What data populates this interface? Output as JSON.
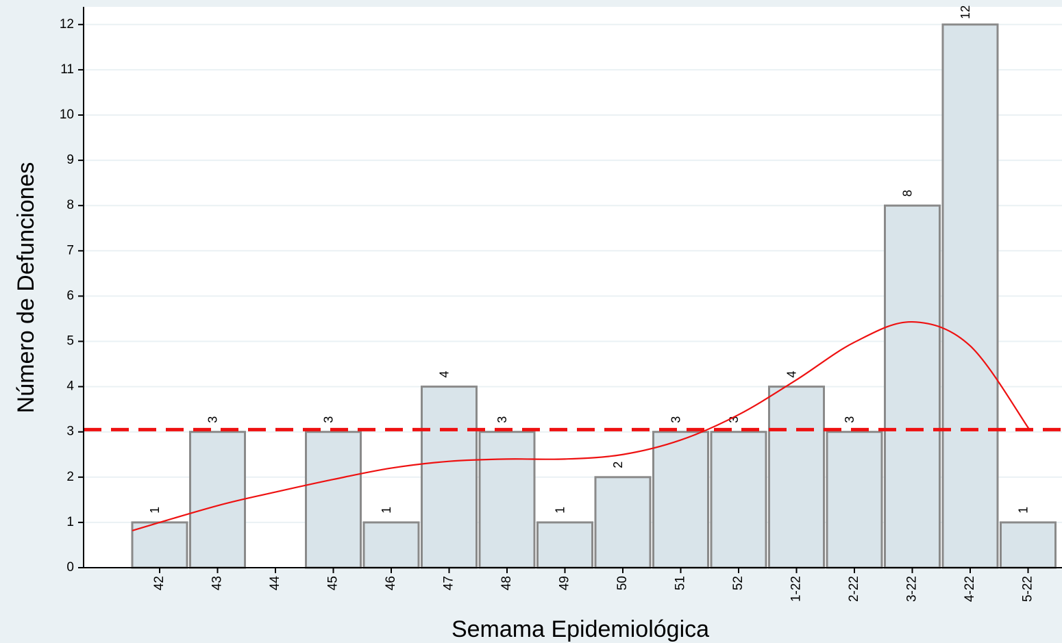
{
  "chart_data": {
    "type": "bar",
    "title": "",
    "xlabel": "Semama Epidemiológica",
    "ylabel": "Número de Defunciones",
    "categories": [
      "42",
      "43",
      "44",
      "45",
      "46",
      "47",
      "48",
      "49",
      "50",
      "51",
      "52",
      "1-22",
      "2-22",
      "3-22",
      "4-22",
      "5-22"
    ],
    "values": [
      1,
      3,
      0,
      3,
      1,
      4,
      3,
      1,
      2,
      3,
      3,
      4,
      3,
      8,
      12,
      1
    ],
    "data_labels": [
      "1",
      "3",
      "",
      "3",
      "1",
      "4",
      "3",
      "1",
      "2",
      "3",
      "3",
      "4",
      "3",
      "8",
      "12",
      "1"
    ],
    "ylim": [
      0,
      12
    ],
    "yticks": [
      0,
      1,
      2,
      3,
      4,
      5,
      6,
      7,
      8,
      9,
      10,
      11,
      12
    ],
    "grid": true,
    "reference_line": {
      "y": 3.05,
      "style": "dashed",
      "color": "#ee1111"
    },
    "trend_curve": {
      "color": "#ee1111",
      "values": [
        0.82,
        1.37,
        1.67,
        1.95,
        2.2,
        2.35,
        2.4,
        2.4,
        2.5,
        2.82,
        3.38,
        4.15,
        4.98,
        5.43,
        4.9,
        3.05
      ]
    },
    "colors": {
      "bar_fill": "#d9e4ea",
      "bar_stroke": "#8a8a8a",
      "background": "#eaf1f4",
      "plot_background": "#ffffff",
      "grid": "#eaf1f4"
    }
  }
}
